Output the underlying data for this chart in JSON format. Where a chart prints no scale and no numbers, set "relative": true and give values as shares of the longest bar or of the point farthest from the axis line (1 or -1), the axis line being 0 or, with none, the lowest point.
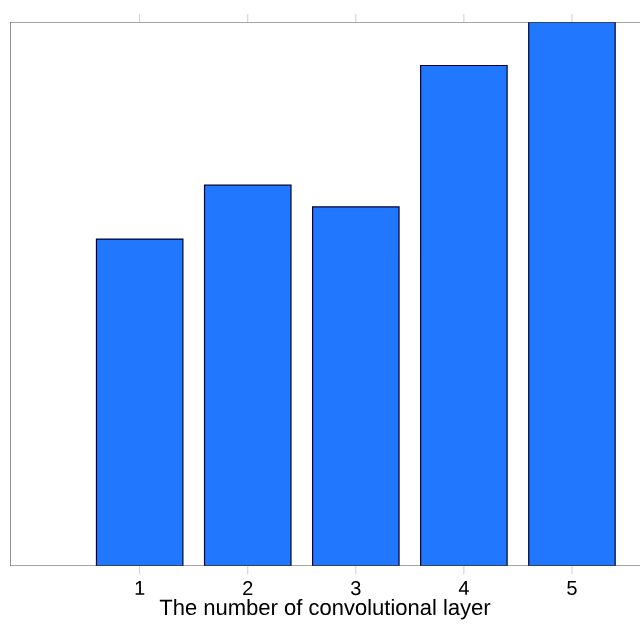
{
  "chart_data": {
    "type": "bar",
    "xlabel": "The number of convolutional layer",
    "categories": [
      "1",
      "2",
      "3",
      "4",
      "5"
    ],
    "values": [
      0.601,
      0.7,
      0.66,
      0.92,
      1.0
    ],
    "color": "#2277ff",
    "relative": true
  }
}
